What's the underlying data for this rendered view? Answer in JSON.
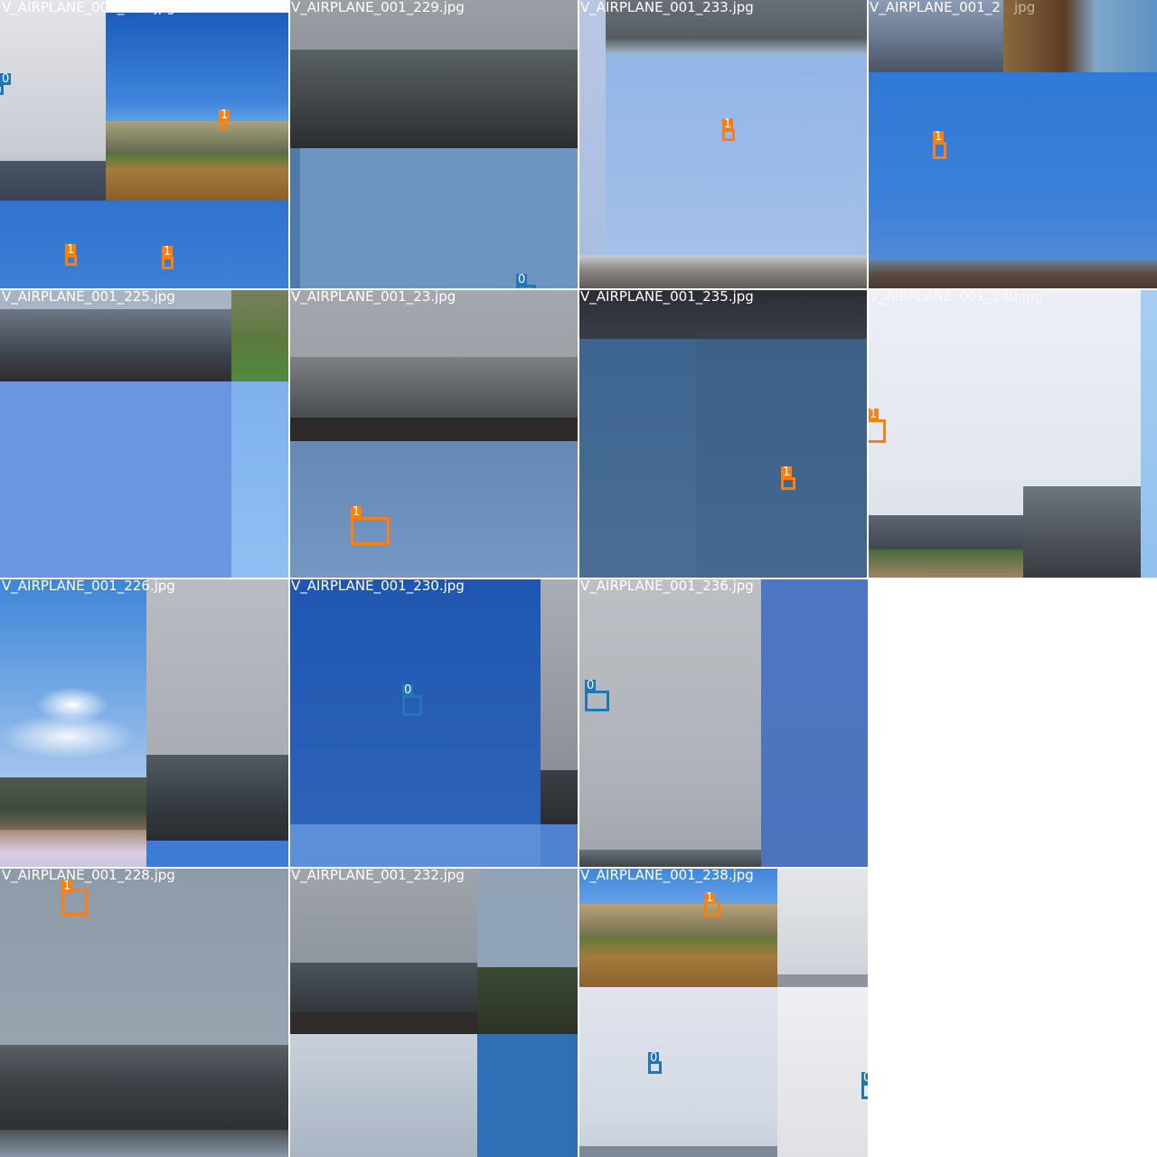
{
  "grid": {
    "tiles": [
      {
        "filename": "V_AIRPLANE_001_223.jpg",
        "detections": [
          {
            "class_label": "0"
          },
          {
            "class_label": "1"
          },
          {
            "class_label": "1"
          },
          {
            "class_label": "1"
          }
        ]
      },
      {
        "filename": "V_AIRPLANE_001_229.jpg",
        "detections": [
          {
            "class_label": "0"
          }
        ]
      },
      {
        "filename": "V_AIRPLANE_001_233.jpg",
        "detections": [
          {
            "class_label": "1"
          }
        ]
      },
      {
        "filename": "V_AIRPLANE_001_2",
        "filename_tail": "jpg",
        "detections": [
          {
            "class_label": "1"
          }
        ]
      },
      {
        "filename": "V_AIRPLANE_001_225.jpg",
        "detections": []
      },
      {
        "filename": "V_AIRPLANE_001_23.jpg",
        "detections": [
          {
            "class_label": "1"
          }
        ]
      },
      {
        "filename": "V_AIRPLANE_001_235.jpg",
        "detections": [
          {
            "class_label": "1"
          }
        ]
      },
      {
        "filename": "V_AIRPLANE_001_240.jpg",
        "detections": [
          {
            "class_label": "1"
          }
        ]
      },
      {
        "filename": "V_AIRPLANE_001_226.jpg",
        "detections": []
      },
      {
        "filename": "V_AIRPLANE_001_230.jpg",
        "detections": [
          {
            "class_label": "0"
          }
        ]
      },
      {
        "filename": "V_AIRPLANE_001_236.jpg",
        "detections": [
          {
            "class_label": "0"
          }
        ]
      },
      {
        "filename": "V_AIRPLANE_001_228.jpg",
        "detections": [
          {
            "class_label": "1"
          }
        ]
      },
      {
        "filename": "V_AIRPLANE_001_232.jpg",
        "detections": []
      },
      {
        "filename": "V_AIRPLANE_001_238.jpg",
        "detections": [
          {
            "class_label": "1"
          },
          {
            "class_label": "0"
          },
          {
            "class_label": "0"
          }
        ]
      }
    ]
  },
  "colors": {
    "class_0": "#1f77b4",
    "class_1": "#ff7f0e",
    "background": "#ffffff"
  }
}
